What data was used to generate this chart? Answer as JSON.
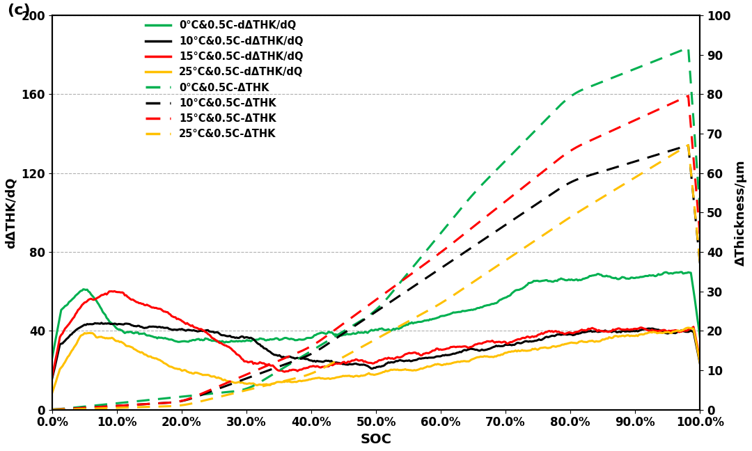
{
  "title": "",
  "label_c": "(c)",
  "xlabel": "SOC",
  "ylabel_left": "dΔTHK/dQ",
  "ylabel_right": "ΔThickness/μm",
  "ylim_left": [
    0,
    200
  ],
  "ylim_right": [
    0,
    100
  ],
  "xlim": [
    0.0,
    1.0
  ],
  "xticks": [
    0.0,
    0.1,
    0.2,
    0.3,
    0.4,
    0.5,
    0.6,
    0.7,
    0.8,
    0.9,
    1.0
  ],
  "xtick_labels": [
    "0.0%",
    "10.0%",
    "20.0%",
    "30.0%",
    "40.0%",
    "50.0%",
    "60.0%",
    "70.0%",
    "80.0%",
    "90.0%",
    "100.0%"
  ],
  "yticks_left": [
    0,
    40,
    80,
    120,
    160,
    200
  ],
  "yticks_right": [
    0,
    10,
    20,
    30,
    40,
    50,
    60,
    70,
    80,
    90,
    100
  ],
  "colors": {
    "green": "#00b050",
    "black": "#000000",
    "red": "#ff0000",
    "orange": "#ffc000"
  },
  "legend_entries": [
    {
      "label": "0°C&0.5C-dΔTHK/dQ",
      "color": "#00b050",
      "ls": "solid"
    },
    {
      "label": "10°C&0.5C-dΔTHK/dQ",
      "color": "#000000",
      "ls": "solid"
    },
    {
      "label": "15°C&0.5C-dΔTHK/dQ",
      "color": "#ff0000",
      "ls": "solid"
    },
    {
      "label": "25°C&0.5C-dΔTHK/dQ",
      "color": "#ffc000",
      "ls": "solid"
    },
    {
      "label": "0°C&0.5C-ΔTHK",
      "color": "#00b050",
      "ls": "dashed"
    },
    {
      "label": "10°C&0.5C-ΔTHK",
      "color": "#000000",
      "ls": "dashed"
    },
    {
      "label": "15°C&0.5C-ΔTHK",
      "color": "#ff0000",
      "ls": "dashed"
    },
    {
      "label": "25°C&0.5C-ΔTHK",
      "color": "#ffc000",
      "ls": "dashed"
    }
  ],
  "background_color": "#ffffff",
  "grid_color": "#b0b0b0"
}
